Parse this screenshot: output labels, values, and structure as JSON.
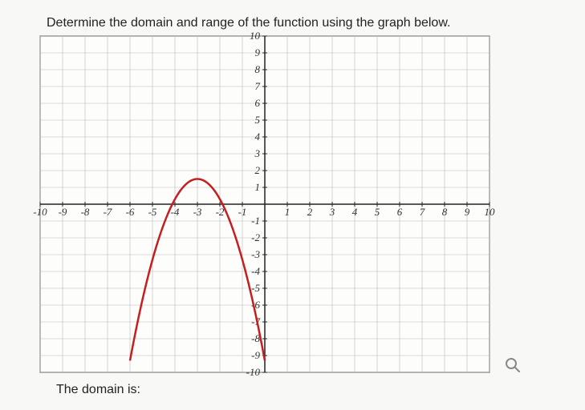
{
  "instruction_text": "Determine the domain and range of the function using the graph below.",
  "answer_label": "The domain is:",
  "chart": {
    "type": "line",
    "xlim": [
      -10,
      10
    ],
    "ylim": [
      -10,
      10
    ],
    "xtick_step": 1,
    "ytick_step": 1,
    "x_labels": [
      "-10",
      "-9",
      "-8",
      "-7",
      "-6",
      "-5",
      "-4",
      "-3",
      "-2",
      "-1",
      "1",
      "2",
      "3",
      "4",
      "5",
      "6",
      "7",
      "8",
      "9",
      "10"
    ],
    "y_labels_pos": [
      "1",
      "2",
      "3",
      "4",
      "5",
      "6",
      "7",
      "8",
      "9",
      "10"
    ],
    "y_labels_neg": [
      "-1",
      "-2",
      "-3",
      "-4",
      "-5",
      "-6",
      "-7",
      "-8",
      "-9",
      "-10"
    ],
    "grid_color": "#b8b8b8",
    "axis_color": "#222222",
    "background_color": "#fdfdfb",
    "curve_color": "#c41e1e",
    "curve_width": 2.5,
    "parabola": {
      "vertex_x": -3,
      "vertex_y": 1.5,
      "a": -1.2,
      "x_start": -6,
      "x_end": 0
    }
  }
}
